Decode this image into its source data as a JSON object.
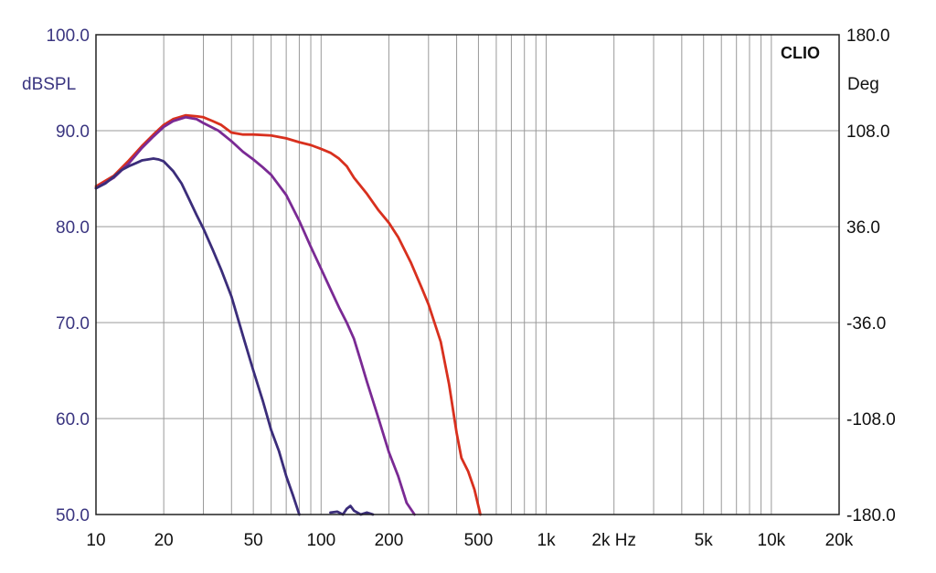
{
  "brand_label": "CLIO",
  "colors": {
    "grid": "#999999",
    "frame": "#222222",
    "left_tick": "#3a3580",
    "series": [
      "#d8301e",
      "#7a2a94",
      "#3b2d7a"
    ]
  },
  "chart_data": {
    "type": "line",
    "x_scale": "log",
    "xlim": [
      10,
      20000
    ],
    "ylim": [
      50,
      100
    ],
    "y2lim": [
      -180,
      180
    ],
    "ylabel": "dBSPL",
    "y2label": "Deg",
    "grid": true,
    "x_ticks": [
      {
        "value": 10,
        "label": "10"
      },
      {
        "value": 20,
        "label": "20"
      },
      {
        "value": 50,
        "label": "50"
      },
      {
        "value": 100,
        "label": "100"
      },
      {
        "value": 200,
        "label": "200"
      },
      {
        "value": 500,
        "label": "500"
      },
      {
        "value": 1000,
        "label": "1k"
      },
      {
        "value": 2000,
        "label": "2k Hz"
      },
      {
        "value": 5000,
        "label": "5k"
      },
      {
        "value": 10000,
        "label": "10k"
      },
      {
        "value": 20000,
        "label": "20k"
      }
    ],
    "y_ticks": [
      {
        "value": 100,
        "label": "100.0"
      },
      {
        "value": 90,
        "label": "90.0"
      },
      {
        "value": 80,
        "label": "80.0"
      },
      {
        "value": 70,
        "label": "70.0"
      },
      {
        "value": 60,
        "label": "60.0"
      },
      {
        "value": 50,
        "label": "50.0"
      }
    ],
    "y2_ticks": [
      {
        "value": 180,
        "label": "180.0"
      },
      {
        "value": 108,
        "label": "108.0"
      },
      {
        "value": 36,
        "label": "36.0"
      },
      {
        "value": -36,
        "label": "-36.0"
      },
      {
        "value": -108,
        "label": "-108.0"
      },
      {
        "value": -180,
        "label": "-180.0"
      }
    ],
    "series": [
      {
        "points": [
          [
            10,
            84.2
          ],
          [
            12,
            85.3
          ],
          [
            14,
            86.9
          ],
          [
            16,
            88.4
          ],
          [
            18,
            89.6
          ],
          [
            20,
            90.6
          ],
          [
            22,
            91.2
          ],
          [
            25,
            91.6
          ],
          [
            28,
            91.5
          ],
          [
            30,
            91.4
          ],
          [
            33,
            91.0
          ],
          [
            36,
            90.6
          ],
          [
            40,
            89.8
          ],
          [
            45,
            89.6
          ],
          [
            50,
            89.6
          ],
          [
            60,
            89.5
          ],
          [
            70,
            89.2
          ],
          [
            80,
            88.8
          ],
          [
            90,
            88.5
          ],
          [
            100,
            88.1
          ],
          [
            110,
            87.7
          ],
          [
            120,
            87.1
          ],
          [
            130,
            86.3
          ],
          [
            140,
            85.1
          ],
          [
            160,
            83.4
          ],
          [
            180,
            81.7
          ],
          [
            200,
            80.4
          ],
          [
            220,
            78.9
          ],
          [
            250,
            76.3
          ],
          [
            280,
            73.6
          ],
          [
            300,
            71.9
          ],
          [
            340,
            68.0
          ],
          [
            370,
            63.6
          ],
          [
            400,
            58.5
          ],
          [
            420,
            55.9
          ],
          [
            450,
            54.5
          ],
          [
            480,
            52.6
          ],
          [
            510,
            50.0
          ]
        ]
      },
      {
        "points": [
          [
            10,
            84.0
          ],
          [
            12,
            85.1
          ],
          [
            14,
            86.6
          ],
          [
            16,
            88.2
          ],
          [
            18,
            89.4
          ],
          [
            20,
            90.4
          ],
          [
            22,
            91.0
          ],
          [
            25,
            91.4
          ],
          [
            28,
            91.2
          ],
          [
            30,
            90.8
          ],
          [
            35,
            90.0
          ],
          [
            40,
            88.9
          ],
          [
            45,
            87.8
          ],
          [
            50,
            87.0
          ],
          [
            55,
            86.2
          ],
          [
            60,
            85.4
          ],
          [
            70,
            83.3
          ],
          [
            80,
            80.6
          ],
          [
            90,
            77.9
          ],
          [
            100,
            75.6
          ],
          [
            110,
            73.5
          ],
          [
            120,
            71.6
          ],
          [
            130,
            70.0
          ],
          [
            140,
            68.3
          ],
          [
            150,
            66.0
          ],
          [
            160,
            63.8
          ],
          [
            180,
            60.0
          ],
          [
            200,
            56.5
          ],
          [
            220,
            54.0
          ],
          [
            240,
            51.2
          ],
          [
            260,
            50.0
          ]
        ]
      },
      {
        "points": [
          [
            10,
            84.0
          ],
          [
            11,
            84.5
          ],
          [
            12,
            85.2
          ],
          [
            13,
            85.9
          ],
          [
            14,
            86.3
          ],
          [
            15,
            86.6
          ],
          [
            16,
            86.9
          ],
          [
            17,
            87.0
          ],
          [
            18,
            87.1
          ],
          [
            19,
            87.0
          ],
          [
            20,
            86.8
          ],
          [
            22,
            85.8
          ],
          [
            24,
            84.5
          ],
          [
            26,
            82.8
          ],
          [
            28,
            81.2
          ],
          [
            30,
            79.8
          ],
          [
            33,
            77.6
          ],
          [
            36,
            75.5
          ],
          [
            40,
            72.7
          ],
          [
            45,
            68.6
          ],
          [
            50,
            65.0
          ],
          [
            55,
            61.9
          ],
          [
            60,
            58.8
          ],
          [
            65,
            56.6
          ],
          [
            70,
            54.0
          ],
          [
            75,
            52.0
          ],
          [
            80,
            50.0
          ]
        ]
      },
      {
        "points": [
          [
            110,
            50.2
          ],
          [
            118,
            50.3
          ],
          [
            125,
            50.0
          ],
          [
            130,
            50.6
          ],
          [
            135,
            50.9
          ],
          [
            140,
            50.4
          ],
          [
            150,
            50.0
          ],
          [
            160,
            50.2
          ],
          [
            170,
            50.0
          ]
        ]
      }
    ]
  }
}
